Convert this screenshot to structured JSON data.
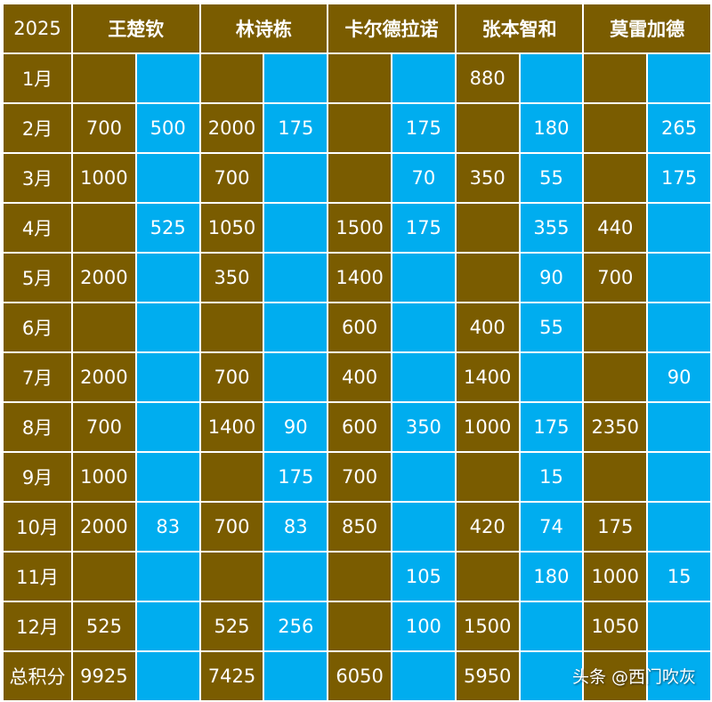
{
  "year_label": "2025",
  "players": [
    "王楚钦",
    "林诗栋",
    "卡尔德拉诺",
    "张本智和",
    "莫雷加德"
  ],
  "rows": [
    {
      "label": "1月",
      "cells": [
        [
          "",
          ""
        ],
        [
          "",
          ""
        ],
        [
          "",
          ""
        ],
        [
          "880",
          ""
        ],
        [
          "",
          ""
        ]
      ]
    },
    {
      "label": "2月",
      "cells": [
        [
          "700",
          "500"
        ],
        [
          "2000",
          "175"
        ],
        [
          "",
          "175"
        ],
        [
          "",
          "180"
        ],
        [
          "",
          "265"
        ]
      ]
    },
    {
      "label": "3月",
      "cells": [
        [
          "1000",
          ""
        ],
        [
          "700",
          ""
        ],
        [
          "",
          "70"
        ],
        [
          "350",
          "55"
        ],
        [
          "",
          "175"
        ]
      ]
    },
    {
      "label": "4月",
      "cells": [
        [
          "",
          "525"
        ],
        [
          "1050",
          ""
        ],
        [
          "1500",
          "175"
        ],
        [
          "",
          "355"
        ],
        [
          "440",
          ""
        ]
      ]
    },
    {
      "label": "5月",
      "cells": [
        [
          "2000",
          ""
        ],
        [
          "350",
          ""
        ],
        [
          "1400",
          ""
        ],
        [
          "",
          "90"
        ],
        [
          "700",
          ""
        ]
      ]
    },
    {
      "label": "6月",
      "cells": [
        [
          "",
          ""
        ],
        [
          "",
          ""
        ],
        [
          "600",
          ""
        ],
        [
          "400",
          "55"
        ],
        [
          "",
          ""
        ]
      ]
    },
    {
      "label": "7月",
      "cells": [
        [
          "2000",
          ""
        ],
        [
          "700",
          ""
        ],
        [
          "400",
          ""
        ],
        [
          "1400",
          ""
        ],
        [
          "",
          "90"
        ]
      ]
    },
    {
      "label": "8月",
      "cells": [
        [
          "700",
          ""
        ],
        [
          "1400",
          "90"
        ],
        [
          "600",
          "350"
        ],
        [
          "1000",
          "175"
        ],
        [
          "2350",
          ""
        ]
      ]
    },
    {
      "label": "9月",
      "cells": [
        [
          "1000",
          ""
        ],
        [
          "",
          "175"
        ],
        [
          "700",
          ""
        ],
        [
          "",
          "15"
        ],
        [
          "",
          ""
        ]
      ]
    },
    {
      "label": "10月",
      "cells": [
        [
          "2000",
          "83"
        ],
        [
          "700",
          "83"
        ],
        [
          "850",
          ""
        ],
        [
          "420",
          "74"
        ],
        [
          "175",
          ""
        ]
      ]
    },
    {
      "label": "11月",
      "cells": [
        [
          "",
          ""
        ],
        [
          "",
          ""
        ],
        [
          "",
          "105"
        ],
        [
          "",
          "180"
        ],
        [
          "1000",
          "15"
        ]
      ]
    },
    {
      "label": "12月",
      "cells": [
        [
          "525",
          ""
        ],
        [
          "525",
          "256"
        ],
        [
          "",
          "100"
        ],
        [
          "1500",
          ""
        ],
        [
          "1050",
          ""
        ]
      ]
    },
    {
      "label": "总积分",
      "cells": [
        [
          "9925",
          ""
        ],
        [
          "7425",
          ""
        ],
        [
          "6050",
          ""
        ],
        [
          "5950",
          ""
        ],
        [
          "",
          ""
        ]
      ]
    }
  ],
  "watermark": "头条 @西门吹灰",
  "colors": {
    "brown": "#7a5c00",
    "blue": "#00adef",
    "highlight_text": "#f2f23c",
    "text": "#ffffff"
  }
}
